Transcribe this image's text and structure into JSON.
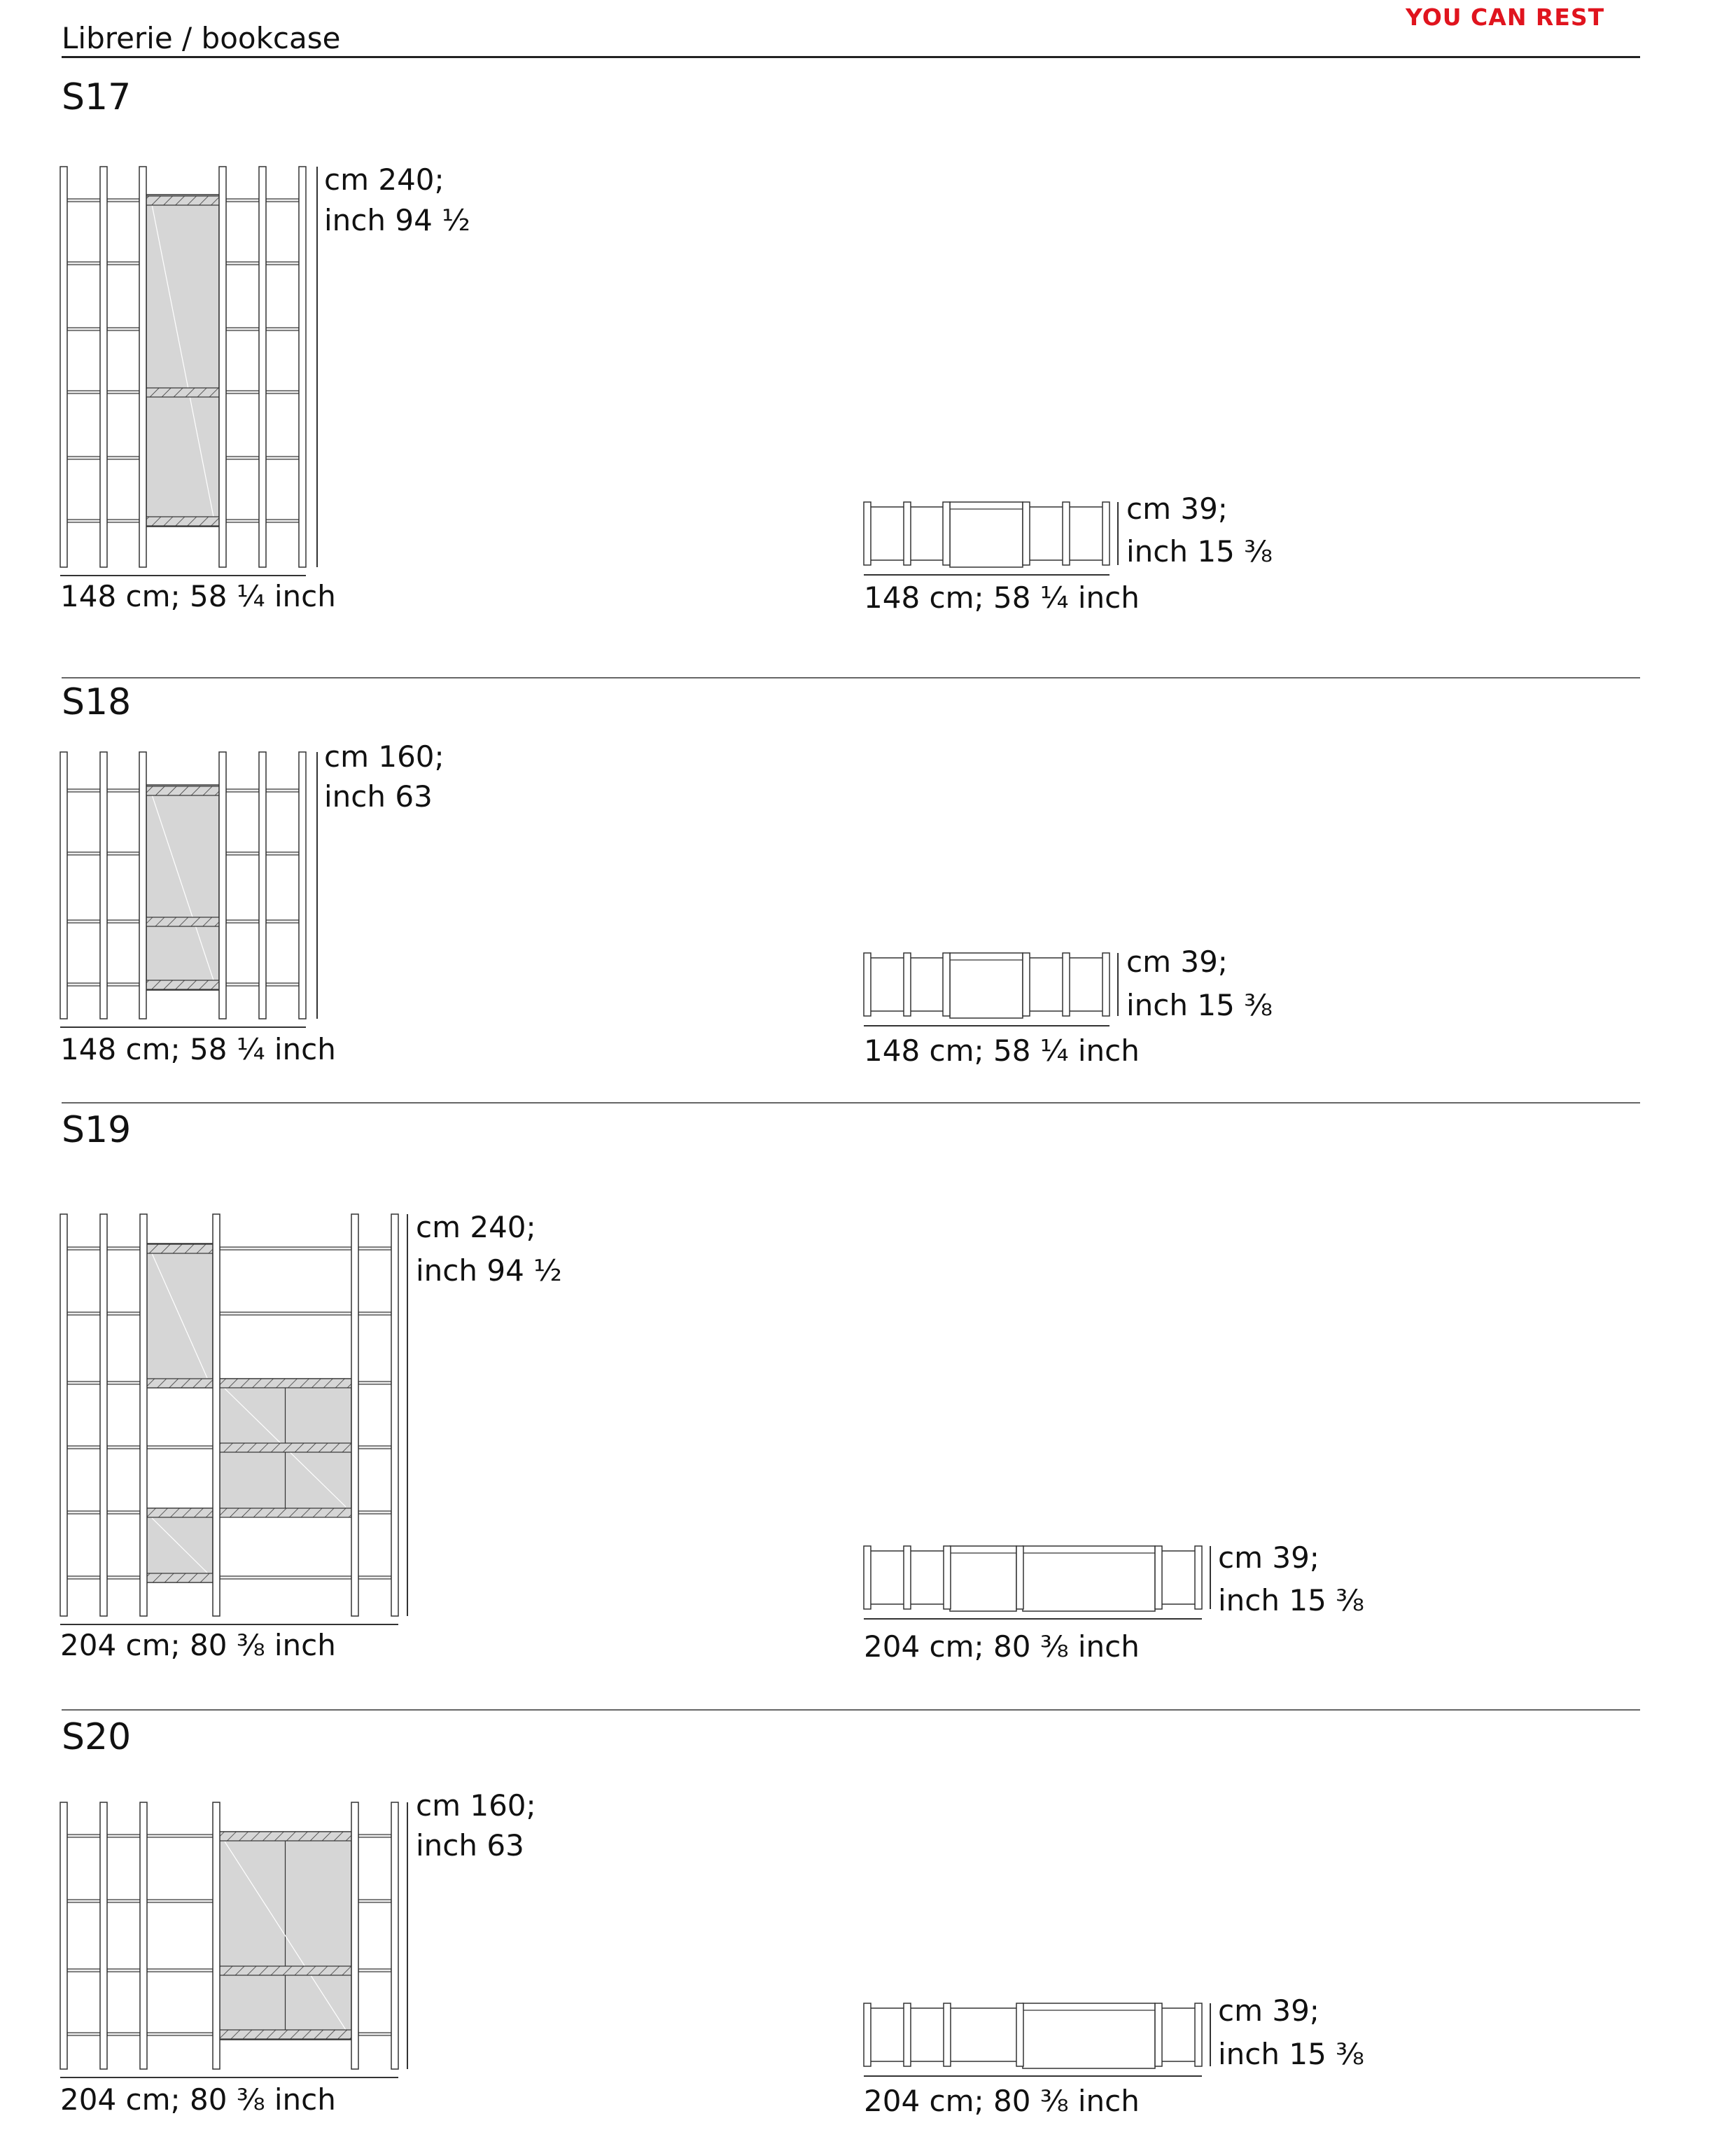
{
  "header": {
    "title": "Librerie / bookcase",
    "brand": "YOU CAN REST",
    "brand_color": "#e0141e"
  },
  "colors": {
    "line": "#333333",
    "glass": "#d6d6d6"
  },
  "sections": [
    {
      "name": "S17",
      "front": {
        "height_cm": "cm 240;",
        "height_inch": "inch 94 ½",
        "width": "148 cm; 58 ¼ inch"
      },
      "top": {
        "depth_cm": "cm 39;",
        "depth_inch": "inch 15 ⅜",
        "width": "148 cm; 58 ¼ inch"
      }
    },
    {
      "name": "S18",
      "front": {
        "height_cm": "cm 160;",
        "height_inch": "inch 63",
        "width": "148 cm; 58 ¼ inch"
      },
      "top": {
        "depth_cm": "cm 39;",
        "depth_inch": "inch 15 ⅜",
        "width": "148 cm; 58 ¼ inch"
      }
    },
    {
      "name": "S19",
      "front": {
        "height_cm": "cm 240;",
        "height_inch": "inch 94 ½",
        "width": "204 cm; 80 ⅜ inch"
      },
      "top": {
        "depth_cm": "cm 39;",
        "depth_inch": "inch 15 ⅜",
        "width": "204 cm; 80 ⅜ inch"
      }
    },
    {
      "name": "S20",
      "front": {
        "height_cm": "cm 160;",
        "height_inch": "inch 63",
        "width": "204 cm; 80 ⅜ inch"
      },
      "top": {
        "depth_cm": "cm 39;",
        "depth_inch": "inch 15 ⅜",
        "width": "204 cm; 80 ⅜ inch"
      }
    }
  ]
}
